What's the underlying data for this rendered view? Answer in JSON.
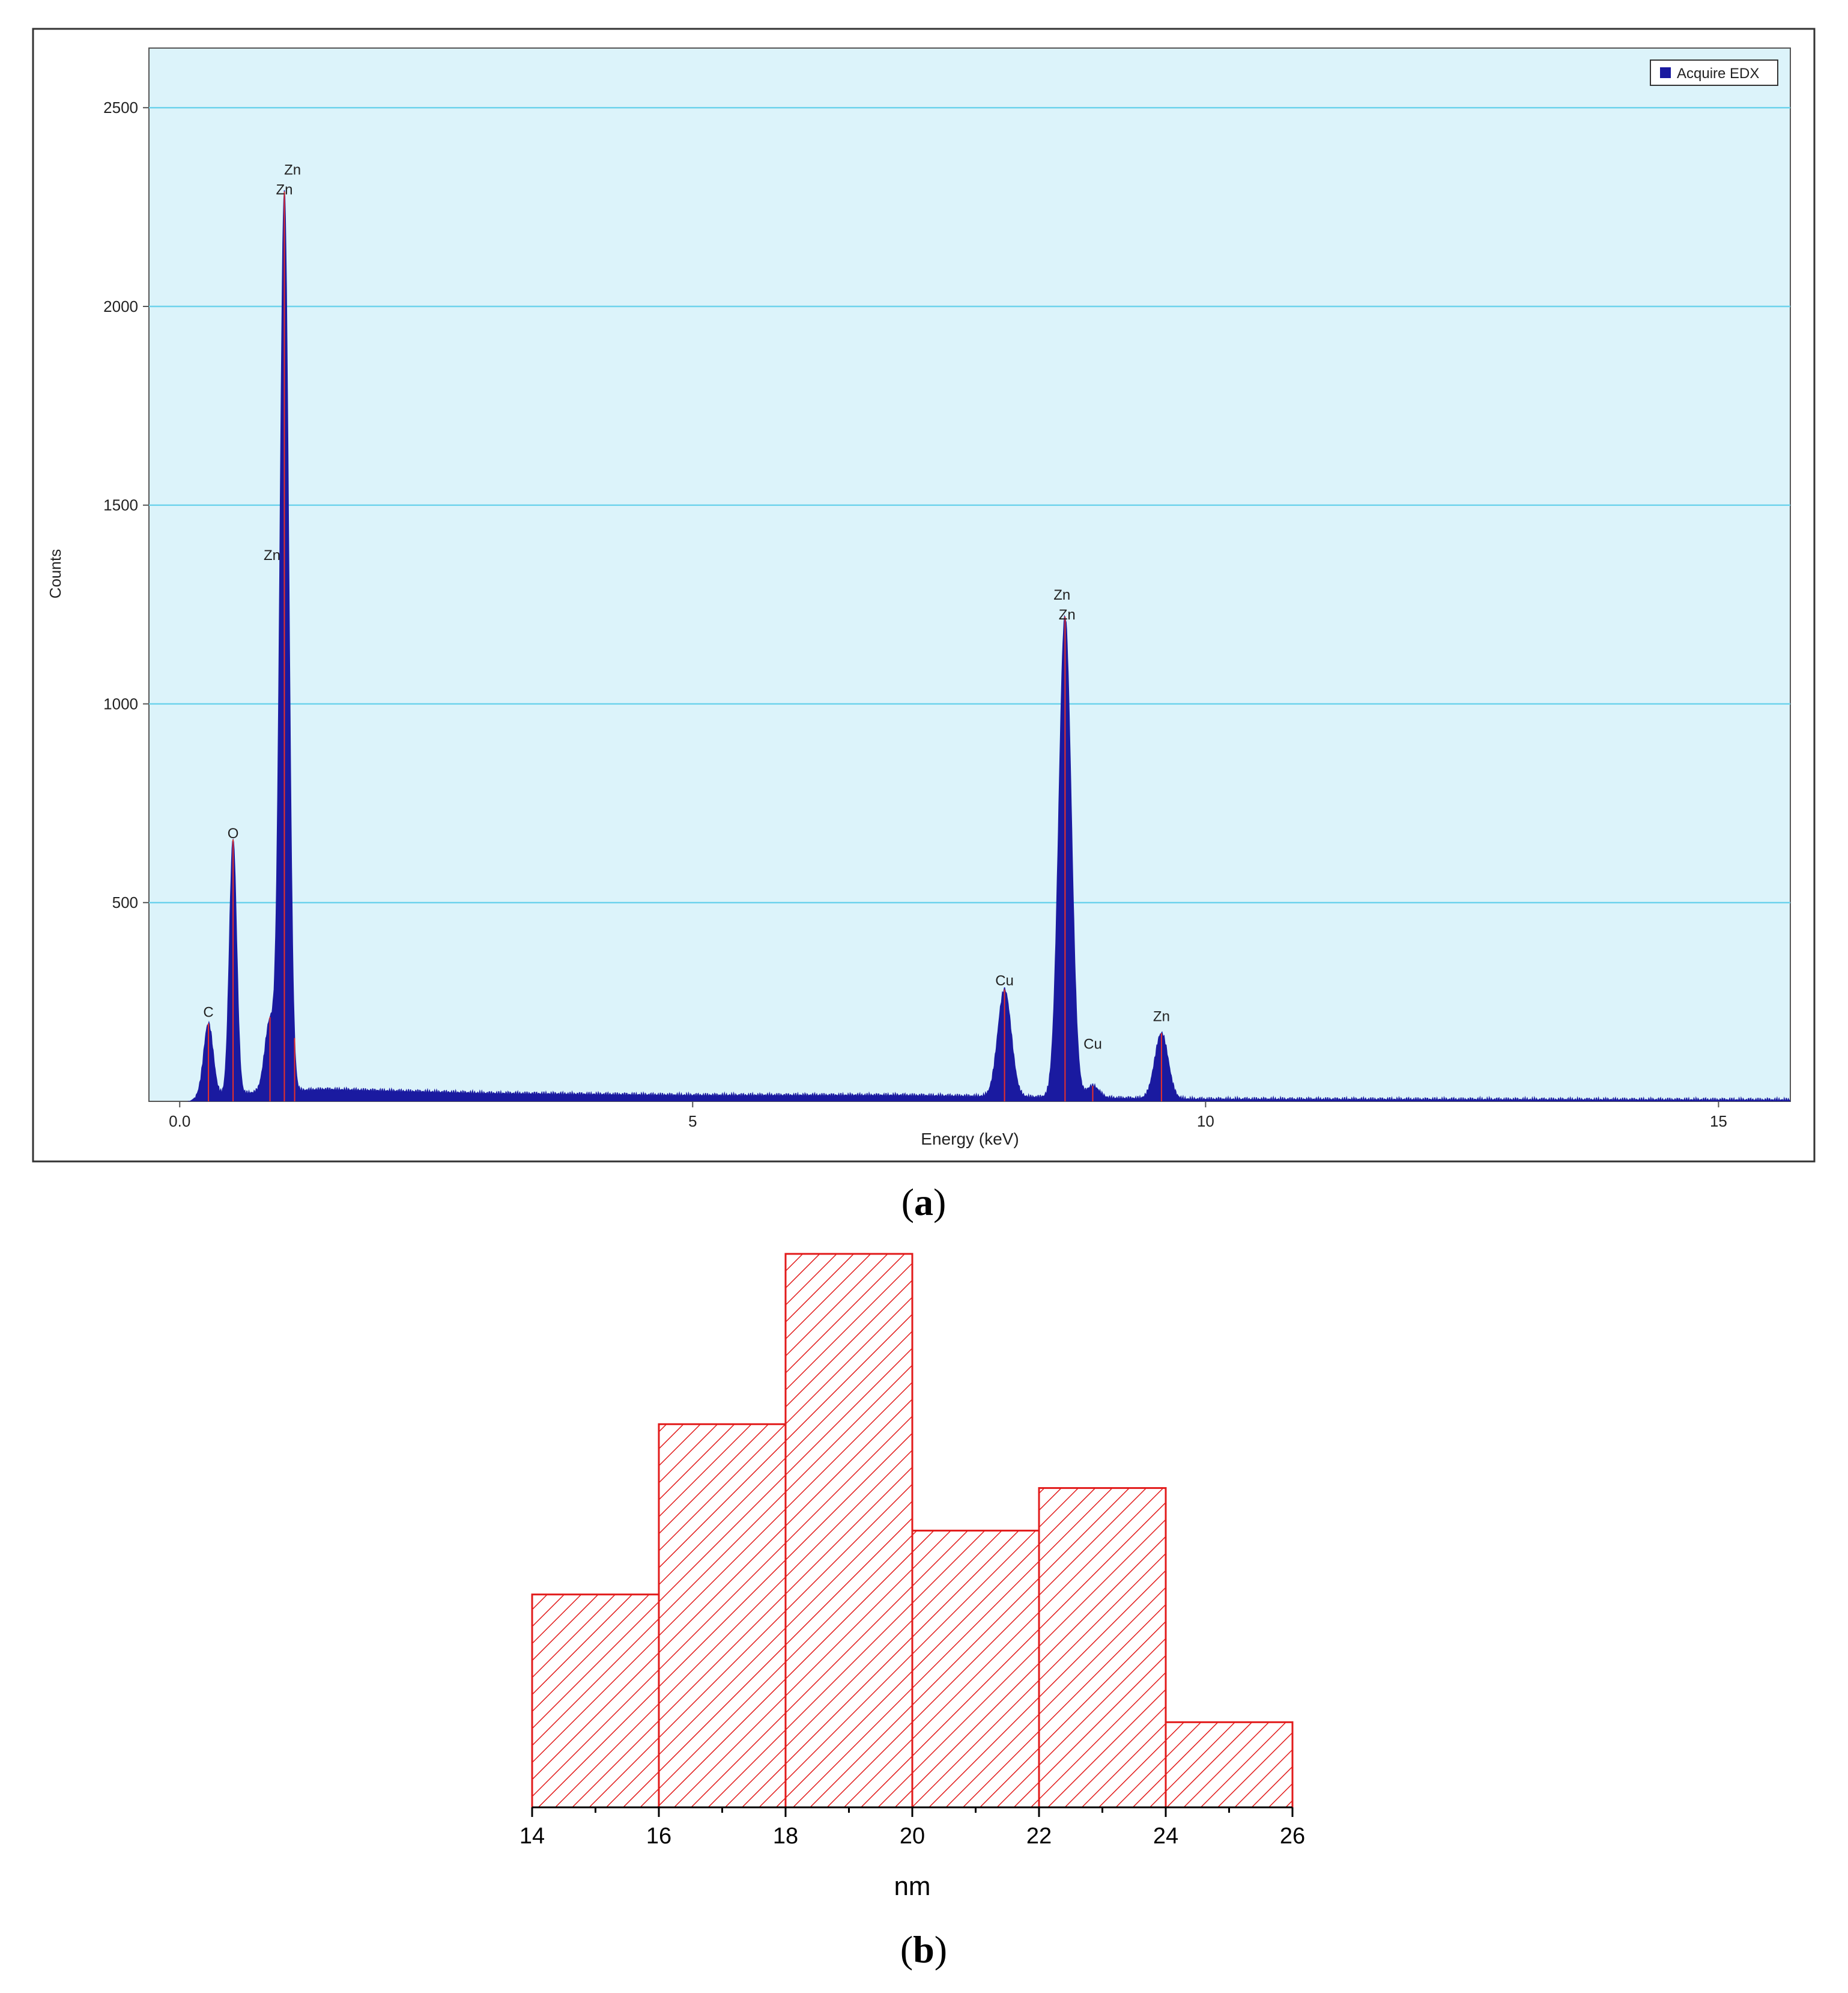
{
  "panel_a": {
    "caption_letter": "a",
    "legend_label": "Acquire EDX",
    "chart_data": {
      "type": "area",
      "xlabel": "Energy (keV)",
      "ylabel": "Counts",
      "xlim": [
        -0.3,
        15.7
      ],
      "ylim": [
        0,
        2650
      ],
      "x_ticks": [
        0,
        5,
        10,
        15
      ],
      "x_tick_labels": [
        "0.0",
        "5",
        "10",
        "15"
      ],
      "y_ticks": [
        500,
        1000,
        1500,
        2000,
        2500
      ],
      "y_tick_labels": [
        "500",
        "1000",
        "1500",
        "2000",
        "2500"
      ],
      "grid": "horizontal",
      "legend": "top-right",
      "series": [
        {
          "name": "Acquire EDX",
          "baseline": [
            [
              0.1,
              0
            ],
            [
              0.2,
              15
            ],
            [
              1.4,
              30
            ],
            [
              3.0,
              20
            ],
            [
              5.0,
              15
            ],
            [
              7.0,
              15
            ],
            [
              10.0,
              5
            ],
            [
              15.7,
              3
            ]
          ],
          "peaks": [
            {
              "energy": 0.28,
              "counts": 180,
              "width": 0.045
            },
            {
              "energy": 0.52,
              "counts": 640,
              "width": 0.035
            },
            {
              "energy": 0.88,
              "counts": 180,
              "width": 0.05
            },
            {
              "energy": 1.02,
              "counts": 2260,
              "width": 0.042
            },
            {
              "energy": 8.04,
              "counts": 270,
              "width": 0.065
            },
            {
              "energy": 8.63,
              "counts": 1210,
              "width": 0.06
            },
            {
              "energy": 8.9,
              "counts": 30,
              "width": 0.06
            },
            {
              "energy": 9.57,
              "counts": 165,
              "width": 0.065
            }
          ]
        }
      ],
      "peak_labels": [
        {
          "label": "C",
          "energy": 0.28,
          "counts": 200
        },
        {
          "label": "O",
          "energy": 0.52,
          "counts": 650
        },
        {
          "label": "Zn",
          "energy": 0.9,
          "counts": 1350
        },
        {
          "label": "Zn",
          "energy": 1.02,
          "counts": 2270
        },
        {
          "label": "Zn",
          "energy": 1.1,
          "counts": 2320
        },
        {
          "label": "Cu",
          "energy": 8.04,
          "counts": 280
        },
        {
          "label": "Zn",
          "energy": 8.6,
          "counts": 1250
        },
        {
          "label": "Zn",
          "energy": 8.65,
          "counts": 1200
        },
        {
          "label": "Cu",
          "energy": 8.9,
          "counts": 120
        },
        {
          "label": "Zn",
          "energy": 9.57,
          "counts": 190
        }
      ],
      "marker_lines": [
        0.28,
        0.52,
        0.88,
        1.02,
        1.12,
        8.04,
        8.63,
        8.9,
        9.57
      ]
    },
    "colors": {
      "plot_bg": "#dcf3fa",
      "grid": "#6fd3ec",
      "fill": "#1a1aa0",
      "marker": "#e8302a",
      "frame": "#333333"
    }
  },
  "panel_b": {
    "caption_letter": "b",
    "chart_data": {
      "type": "bar",
      "xlabel": "nm",
      "bin_edges": [
        14,
        16,
        18,
        20,
        22,
        24,
        26
      ],
      "values": [
        10,
        18,
        26,
        13,
        15,
        4
      ],
      "ylim": [
        0,
        28
      ],
      "x_ticks": [
        14,
        16,
        18,
        20,
        22,
        24,
        26
      ],
      "x_tick_labels": [
        "14",
        "16",
        "18",
        "20",
        "22",
        "24",
        "26"
      ],
      "hatch": "diagonal",
      "grid": "off"
    },
    "colors": {
      "bar": "#e21b1b",
      "axis": "#000000"
    }
  }
}
